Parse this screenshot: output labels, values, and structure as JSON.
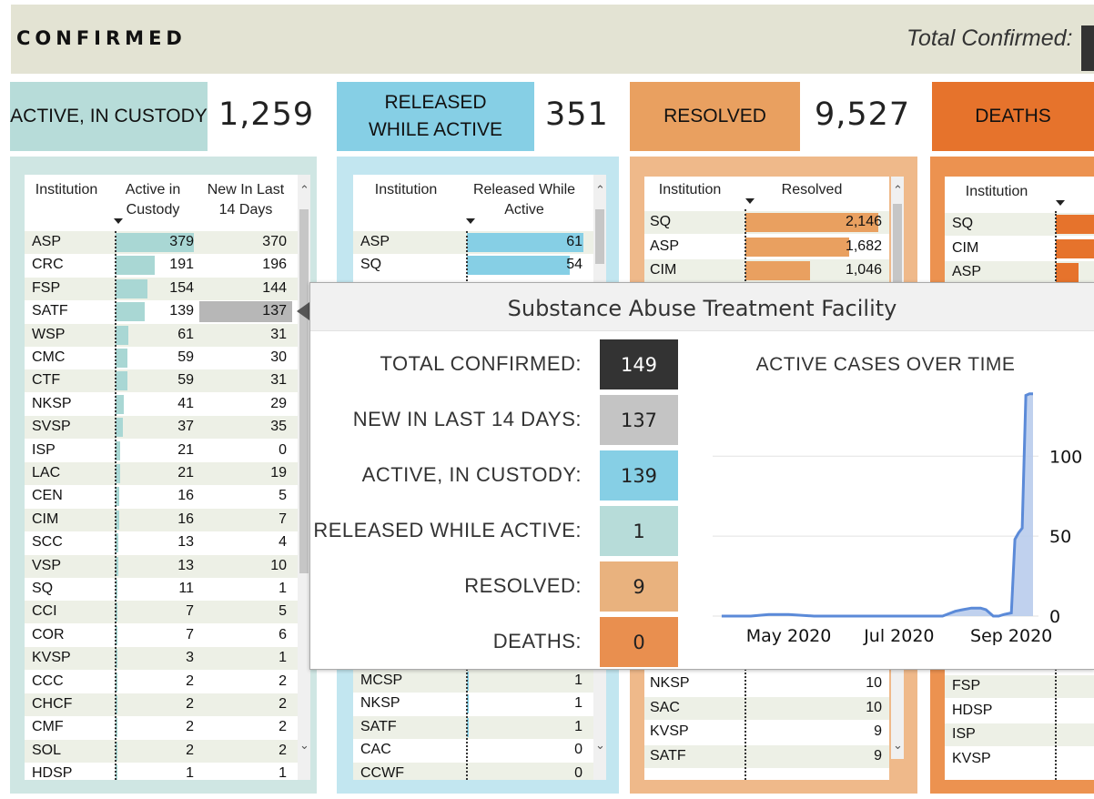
{
  "header": {
    "title": "CONFIRMED",
    "total_label": "Total Confirmed:"
  },
  "kpis": {
    "active": {
      "label": "ACTIVE, IN CUSTODY",
      "value": "1,259",
      "color": "#b7dcd9"
    },
    "released": {
      "label_line1": "RELEASED",
      "label_line2": "WHILE ACTIVE",
      "value": "351",
      "color": "#86cfe5"
    },
    "resolved": {
      "label": "RESOLVED",
      "value": "9,527",
      "color": "#e9a060"
    },
    "deaths": {
      "label": "DEATHS",
      "color": "#e6732c"
    }
  },
  "active_table": {
    "col1": "Institution",
    "col2_line1": "Active in",
    "col2_line2": "Custody",
    "col3_line1": "New In Last",
    "col3_line2": "14 Days",
    "bar_color": "#a9d7d4",
    "highlight_row": "SATF",
    "rows": [
      {
        "inst": "ASP",
        "active": "379",
        "new": "370",
        "v": 379
      },
      {
        "inst": "CRC",
        "active": "191",
        "new": "196",
        "v": 191
      },
      {
        "inst": "FSP",
        "active": "154",
        "new": "144",
        "v": 154
      },
      {
        "inst": "SATF",
        "active": "139",
        "new": "137",
        "v": 139
      },
      {
        "inst": "WSP",
        "active": "61",
        "new": "31",
        "v": 61
      },
      {
        "inst": "CMC",
        "active": "59",
        "new": "30",
        "v": 59
      },
      {
        "inst": "CTF",
        "active": "59",
        "new": "31",
        "v": 59
      },
      {
        "inst": "NKSP",
        "active": "41",
        "new": "29",
        "v": 41
      },
      {
        "inst": "SVSP",
        "active": "37",
        "new": "35",
        "v": 37
      },
      {
        "inst": "ISP",
        "active": "21",
        "new": "0",
        "v": 21
      },
      {
        "inst": "LAC",
        "active": "21",
        "new": "19",
        "v": 21
      },
      {
        "inst": "CEN",
        "active": "16",
        "new": "5",
        "v": 16
      },
      {
        "inst": "CIM",
        "active": "16",
        "new": "7",
        "v": 16
      },
      {
        "inst": "SCC",
        "active": "13",
        "new": "4",
        "v": 13
      },
      {
        "inst": "VSP",
        "active": "13",
        "new": "10",
        "v": 13
      },
      {
        "inst": "SQ",
        "active": "11",
        "new": "1",
        "v": 11
      },
      {
        "inst": "CCI",
        "active": "7",
        "new": "5",
        "v": 7
      },
      {
        "inst": "COR",
        "active": "7",
        "new": "6",
        "v": 7
      },
      {
        "inst": "KVSP",
        "active": "3",
        "new": "1",
        "v": 3
      },
      {
        "inst": "CCC",
        "active": "2",
        "new": "2",
        "v": 2
      },
      {
        "inst": "CHCF",
        "active": "2",
        "new": "2",
        "v": 2
      },
      {
        "inst": "CMF",
        "active": "2",
        "new": "2",
        "v": 2
      },
      {
        "inst": "SOL",
        "active": "2",
        "new": "2",
        "v": 2
      },
      {
        "inst": "HDSP",
        "active": "1",
        "new": "1",
        "v": 1
      }
    ]
  },
  "released_table": {
    "col1": "Institution",
    "col2_line1": "Released While",
    "col2_line2": "Active",
    "bar_color": "#86cfe5",
    "top_rows": [
      {
        "inst": "ASP",
        "value": "61",
        "v": 61
      },
      {
        "inst": "SQ",
        "value": "54",
        "v": 54
      }
    ],
    "bottom_rows": [
      {
        "inst": "MCSP",
        "value": "1",
        "v": 1
      },
      {
        "inst": "NKSP",
        "value": "1",
        "v": 1
      },
      {
        "inst": "SATF",
        "value": "1",
        "v": 1
      },
      {
        "inst": "CAC",
        "value": "0",
        "v": 0
      },
      {
        "inst": "CCWF",
        "value": "0",
        "v": 0
      }
    ]
  },
  "resolved_table": {
    "col1": "Institution",
    "col2": "Resolved",
    "bar_color": "#e9a060",
    "top_rows": [
      {
        "inst": "SQ",
        "value": "2,146",
        "v": 2146
      },
      {
        "inst": "ASP",
        "value": "1,682",
        "v": 1682
      },
      {
        "inst": "CIM",
        "value": "1,046",
        "v": 1046
      }
    ],
    "bottom_rows": [
      {
        "inst": "NKSP",
        "value": "10",
        "v": 10
      },
      {
        "inst": "SAC",
        "value": "10",
        "v": 10
      },
      {
        "inst": "KVSP",
        "value": "9",
        "v": 9
      },
      {
        "inst": "SATF",
        "value": "9",
        "v": 9
      }
    ]
  },
  "deaths_table": {
    "col1": "Institution",
    "bar_color": "#e6732c",
    "top_rows": [
      {
        "inst": "SQ",
        "v": 1
      },
      {
        "inst": "CIM",
        "v": 1
      },
      {
        "inst": "ASP",
        "v": 0.6
      }
    ],
    "bottom_rows": [
      {
        "inst": "FSP"
      },
      {
        "inst": "HDSP"
      },
      {
        "inst": "ISP"
      },
      {
        "inst": "KVSP"
      }
    ]
  },
  "tooltip": {
    "title": "Substance Abuse Treatment Facility",
    "chart_title": "ACTIVE CASES OVER TIME",
    "stats": [
      {
        "label": "TOTAL CONFIRMED:",
        "value": "149",
        "bg": "#333333",
        "fg": "#ffffff"
      },
      {
        "label": "NEW IN LAST 14 DAYS:",
        "value": "137",
        "bg": "#c4c4c4",
        "fg": "#222222"
      },
      {
        "label": "ACTIVE, IN CUSTODY:",
        "value": "139",
        "bg": "#86cfe5",
        "fg": "#222222"
      },
      {
        "label": "RELEASED WHILE ACTIVE:",
        "value": "1",
        "bg": "#b7dcd9",
        "fg": "#222222"
      },
      {
        "label": "RESOLVED:",
        "value": "9",
        "bg": "#e9b27e",
        "fg": "#222222"
      },
      {
        "label": "DEATHS:",
        "value": "0",
        "bg": "#e98f4f",
        "fg": "#222222"
      }
    ]
  },
  "chart_data": {
    "type": "area",
    "title": "ACTIVE CASES OVER TIME",
    "xlabel": "",
    "ylabel": "",
    "x_ticks": [
      "May 2020",
      "Jul 2020",
      "Sep 2020"
    ],
    "y_ticks": [
      0,
      50,
      100
    ],
    "ylim": [
      0,
      140
    ],
    "grid": true,
    "series": [
      {
        "color": "#5b8ad8",
        "x": [
          "2020-03-25",
          "2020-04-10",
          "2020-04-20",
          "2020-05-01",
          "2020-05-15",
          "2020-06-01",
          "2020-06-15",
          "2020-07-01",
          "2020-07-15",
          "2020-07-25",
          "2020-08-01",
          "2020-08-05",
          "2020-08-10",
          "2020-08-15",
          "2020-08-18",
          "2020-08-22",
          "2020-08-25",
          "2020-08-28",
          "2020-09-01",
          "2020-09-03",
          "2020-09-05",
          "2020-09-07",
          "2020-09-09",
          "2020-09-11",
          "2020-09-13"
        ],
        "y": [
          0,
          0,
          1,
          1,
          0,
          0,
          0,
          0,
          0,
          0,
          3,
          4,
          5,
          5,
          4,
          0,
          0,
          1,
          2,
          48,
          52,
          55,
          138,
          139,
          139
        ]
      }
    ]
  }
}
